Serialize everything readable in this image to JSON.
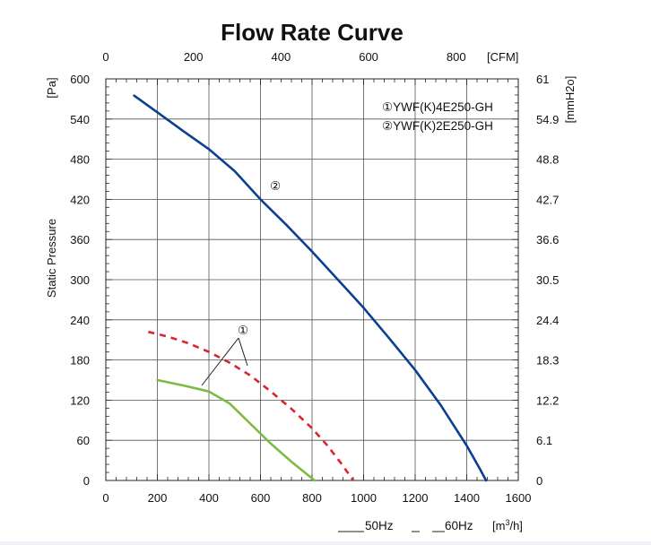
{
  "chart_data": {
    "type": "line",
    "title": "Flow Rate Curve",
    "ylabel": "Static Pressure",
    "x_unit": "[m³/h]",
    "x_top_unit": "[CFM]",
    "y_unit": "[Pa]",
    "y_right_unit": "[mmH2o]",
    "xlim": [
      0,
      1600
    ],
    "ylim": [
      0,
      600
    ],
    "x_ticks": [
      "0",
      "200",
      "400",
      "600",
      "800",
      "1000",
      "1200",
      "1400",
      "1600"
    ],
    "y_ticks": [
      "0",
      "60",
      "120",
      "180",
      "240",
      "300",
      "360",
      "420",
      "480",
      "540",
      "600"
    ],
    "x_top_ticks": [
      "0",
      "200",
      "400",
      "600",
      "800"
    ],
    "y_right_ticks": [
      "0",
      "6.1",
      "12.2",
      "18.3",
      "24.4",
      "30.5",
      "36.6",
      "42.7",
      "48.8",
      "54.9",
      "61"
    ],
    "grid": true,
    "legend_items": [
      "①YWF(K)4E250-GH",
      "②YWF(K)2E250-GH"
    ],
    "frequency_legend": [
      "50Hz",
      "60Hz"
    ],
    "annotations": [
      "①",
      "②"
    ],
    "series": [
      {
        "label": "①",
        "line_style": "50Hz",
        "color": "#7dbb42",
        "x": [
          200,
          300,
          400,
          480,
          560,
          640,
          720,
          810
        ],
        "y": [
          150,
          142,
          133,
          115,
          85,
          55,
          28,
          0
        ]
      },
      {
        "label": "①",
        "line_style": "60Hz",
        "color": "#d9262a",
        "x": [
          165,
          240,
          320,
          400,
          480,
          560,
          640,
          720,
          800,
          860,
          910,
          960
        ],
        "y": [
          222,
          215,
          205,
          192,
          176,
          157,
          133,
          107,
          78,
          52,
          27,
          0
        ]
      },
      {
        "label": "②",
        "line_style": "50Hz",
        "color": "#0b3f8f",
        "x": [
          110,
          200,
          300,
          400,
          500,
          600,
          700,
          800,
          900,
          1000,
          1100,
          1200,
          1300,
          1400,
          1450,
          1475
        ],
        "y": [
          575,
          550,
          522,
          495,
          462,
          420,
          382,
          342,
          300,
          258,
          212,
          165,
          112,
          52,
          18,
          0
        ]
      }
    ]
  }
}
